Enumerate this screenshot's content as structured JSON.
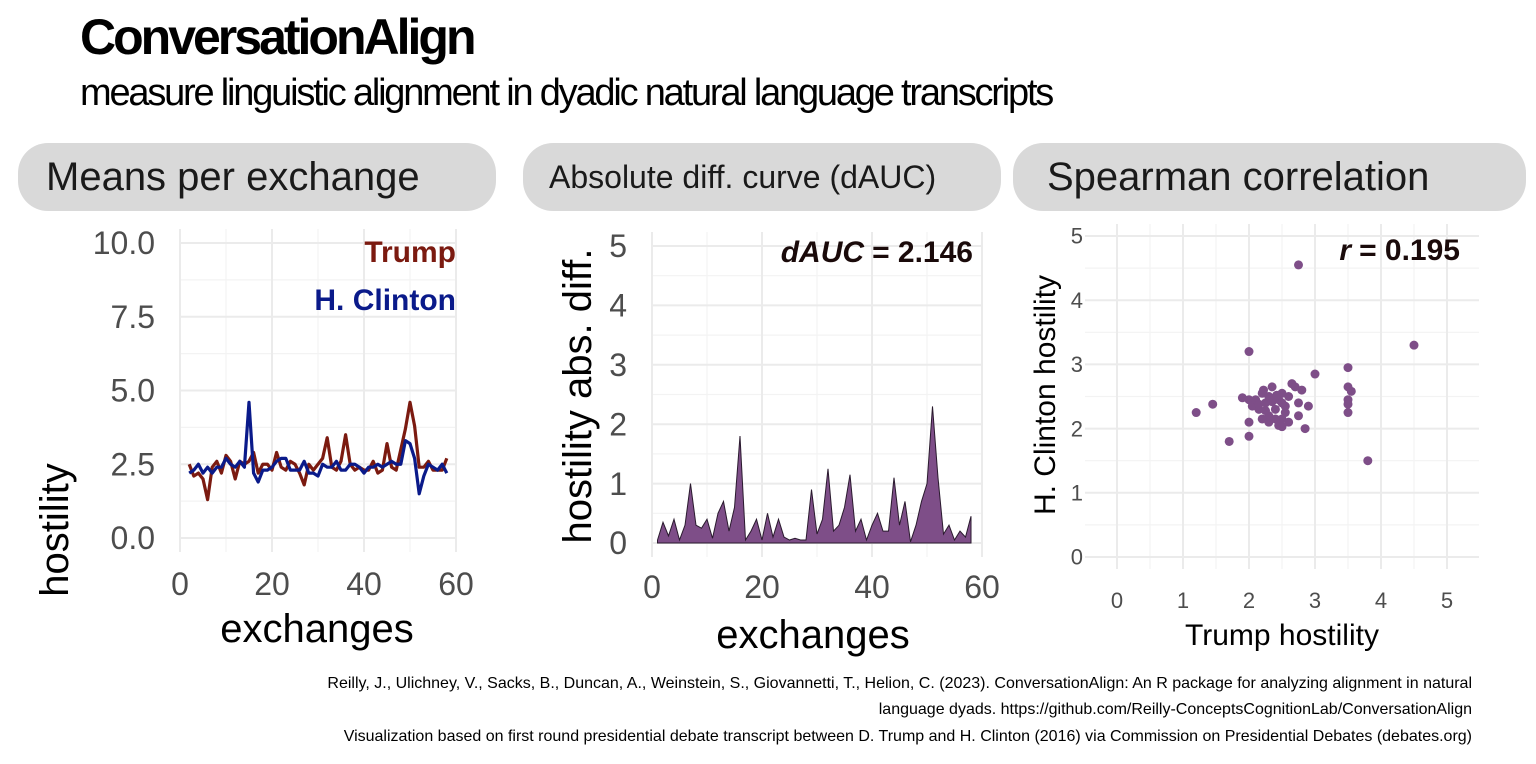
{
  "page": {
    "title": "ConversationAlign",
    "subtitle": "measure linguistic alignment in dyadic natural language transcripts",
    "caption_lines": [
      "Reilly, J., Ulichney, V., Sacks, B., Duncan, A., Weinstein, S., Giovannetti, T., Helion, C. (2023). ConversationAlign: An R package for analyzing alignment in natural",
      "language dyads. https://github.com/Reilly-ConceptsCognitionLab/ConversationAlign",
      "Visualization based on first round presidential debate transcript between D. Trump and H. Clinton (2016) via Commission on Presidential Debates (debates.org)"
    ]
  },
  "chart_data": [
    {
      "type": "line",
      "title": "Means per exchange",
      "xlabel": "exchanges",
      "ylabel": "hostility",
      "xlim": [
        0,
        60
      ],
      "ylim": [
        0,
        10
      ],
      "xticks": [
        0,
        20,
        40,
        60
      ],
      "yticks": [
        "0.0",
        "2.5",
        "5.0",
        "7.5",
        "10.0"
      ],
      "grid": true,
      "legend_position": "top-right (text labels)",
      "x": [
        2,
        3,
        4,
        5,
        6,
        7,
        8,
        9,
        10,
        11,
        12,
        13,
        14,
        15,
        16,
        17,
        18,
        19,
        20,
        21,
        22,
        23,
        24,
        25,
        26,
        27,
        28,
        29,
        30,
        31,
        32,
        33,
        34,
        35,
        36,
        37,
        38,
        39,
        40,
        41,
        42,
        43,
        44,
        45,
        46,
        47,
        48,
        49,
        50,
        51,
        52,
        53,
        54,
        55,
        56,
        57,
        58
      ],
      "series": [
        {
          "name": "Trump",
          "color": "#7b1a10",
          "values": [
            2.5,
            2.1,
            2.2,
            2.0,
            1.3,
            2.4,
            2.6,
            2.2,
            2.8,
            2.6,
            2.0,
            2.6,
            2.5,
            2.6,
            2.9,
            2.2,
            2.5,
            2.5,
            2.3,
            2.9,
            2.4,
            2.3,
            2.6,
            2.5,
            2.2,
            1.8,
            2.5,
            2.3,
            2.5,
            2.7,
            3.4,
            2.4,
            2.3,
            2.6,
            3.5,
            2.5,
            2.3,
            2.4,
            2.3,
            2.3,
            2.6,
            2.2,
            2.3,
            3.2,
            2.4,
            2.3,
            3.0,
            3.7,
            4.6,
            3.8,
            2.4,
            2.4,
            2.6,
            2.3,
            2.3,
            2.3,
            2.7
          ]
        },
        {
          "name": "H. Clinton",
          "color": "#0a1a8a",
          "values": [
            2.2,
            2.3,
            2.5,
            2.2,
            2.4,
            2.2,
            2.4,
            2.4,
            2.7,
            2.5,
            2.4,
            2.6,
            2.4,
            4.6,
            2.2,
            1.9,
            2.3,
            2.3,
            2.4,
            2.6,
            2.7,
            2.7,
            2.3,
            2.3,
            2.3,
            2.6,
            2.2,
            2.2,
            2.1,
            2.5,
            2.4,
            2.4,
            2.6,
            2.3,
            2.3,
            2.5,
            2.5,
            2.4,
            2.2,
            2.4,
            2.4,
            2.5,
            2.4,
            2.5,
            2.6,
            2.5,
            2.5,
            3.3,
            3.2,
            2.7,
            1.5,
            2.1,
            2.5,
            2.4,
            2.3,
            2.5,
            2.2
          ]
        }
      ]
    },
    {
      "type": "area",
      "title": "Absolute diff. curve (dAUC)",
      "xlabel": "exchanges",
      "ylabel": "hostility abs. diff.",
      "xlim": [
        0,
        60
      ],
      "ylim": [
        0,
        5
      ],
      "xticks": [
        0,
        20,
        40,
        60
      ],
      "yticks": [
        0,
        1,
        2,
        3,
        4,
        5
      ],
      "grid": true,
      "annotation": {
        "label": "dAUC",
        "value": "= 2.146"
      },
      "fill_color": "#7e4e88",
      "x": [
        1,
        2,
        3,
        4,
        5,
        6,
        7,
        8,
        9,
        10,
        11,
        12,
        13,
        14,
        15,
        16,
        17,
        18,
        19,
        20,
        21,
        22,
        23,
        24,
        25,
        26,
        27,
        28,
        29,
        30,
        31,
        32,
        33,
        34,
        35,
        36,
        37,
        38,
        39,
        40,
        41,
        42,
        43,
        44,
        45,
        46,
        47,
        48,
        49,
        50,
        51,
        52,
        53,
        54,
        55,
        56,
        57,
        58
      ],
      "values": [
        0.05,
        0.35,
        0.12,
        0.4,
        0.05,
        0.3,
        1.0,
        0.3,
        0.25,
        0.4,
        0.08,
        0.5,
        0.7,
        0.2,
        0.6,
        1.8,
        0.05,
        0.2,
        0.4,
        0.05,
        0.5,
        0.1,
        0.4,
        0.1,
        0.05,
        0.08,
        0.05,
        0.05,
        0.9,
        0.15,
        0.4,
        1.25,
        0.2,
        0.3,
        0.6,
        1.15,
        0.2,
        0.4,
        0.05,
        0.3,
        0.5,
        0.2,
        0.2,
        1.1,
        0.3,
        0.7,
        0.02,
        0.3,
        0.7,
        1.0,
        2.3,
        1.1,
        0.15,
        0.3,
        0.05,
        0.2,
        0.1,
        0.45
      ]
    },
    {
      "type": "scatter",
      "title": "Spearman correlation",
      "xlabel": "Trump hostility",
      "ylabel": "H. Clinton hostility",
      "xlim": [
        0,
        5
      ],
      "ylim": [
        0,
        5
      ],
      "xticks": [
        0,
        1,
        2,
        3,
        4,
        5
      ],
      "yticks": [
        0,
        1,
        2,
        3,
        4,
        5
      ],
      "grid": true,
      "annotation": {
        "label": "r",
        "value": "= 0.195"
      },
      "point_color": "#7e4e88",
      "points": [
        [
          2.75,
          4.55
        ],
        [
          4.5,
          3.3
        ],
        [
          2.0,
          3.2
        ],
        [
          3.5,
          2.95
        ],
        [
          3.0,
          2.85
        ],
        [
          3.5,
          2.65
        ],
        [
          3.55,
          2.58
        ],
        [
          3.5,
          2.45
        ],
        [
          3.5,
          2.38
        ],
        [
          3.5,
          2.25
        ],
        [
          1.2,
          2.25
        ],
        [
          1.45,
          2.38
        ],
        [
          1.9,
          2.48
        ],
        [
          2.0,
          2.45
        ],
        [
          2.05,
          2.35
        ],
        [
          2.1,
          2.45
        ],
        [
          2.15,
          2.3
        ],
        [
          2.2,
          2.55
        ],
        [
          2.22,
          2.6
        ],
        [
          2.25,
          2.4
        ],
        [
          2.3,
          2.2
        ],
        [
          2.3,
          2.5
        ],
        [
          2.35,
          2.65
        ],
        [
          2.4,
          2.3
        ],
        [
          2.45,
          2.45
        ],
        [
          2.5,
          2.4
        ],
        [
          2.5,
          2.55
        ],
        [
          2.55,
          2.35
        ],
        [
          2.6,
          2.5
        ],
        [
          2.65,
          2.7
        ],
        [
          2.55,
          2.25
        ],
        [
          2.6,
          2.1
        ],
        [
          2.7,
          2.65
        ],
        [
          2.75,
          2.4
        ],
        [
          2.8,
          2.6
        ],
        [
          2.75,
          2.2
        ],
        [
          2.85,
          2.0
        ],
        [
          2.9,
          2.35
        ],
        [
          2.0,
          2.1
        ],
        [
          2.2,
          2.15
        ],
        [
          2.3,
          2.1
        ],
        [
          2.45,
          2.05
        ],
        [
          2.4,
          2.15
        ],
        [
          1.7,
          1.8
        ],
        [
          2.0,
          1.88
        ],
        [
          3.8,
          1.5
        ],
        [
          2.15,
          2.38
        ],
        [
          2.35,
          2.42
        ],
        [
          2.5,
          2.15
        ],
        [
          2.5,
          2.03
        ],
        [
          2.25,
          2.28
        ],
        [
          2.42,
          2.52
        ]
      ]
    }
  ]
}
